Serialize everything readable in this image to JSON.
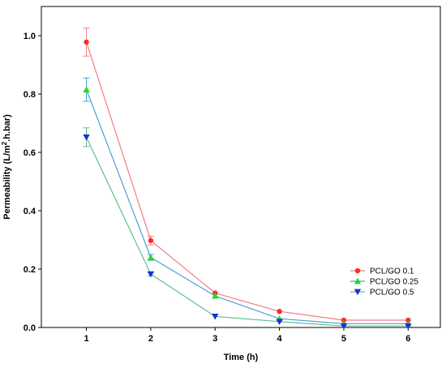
{
  "chart_data": {
    "type": "line",
    "xlabel": "Time (h)",
    "ylabel_main": "Permeability (L/m",
    "ylabel_sup": "2",
    "ylabel_tail": ".h.bar)",
    "x": [
      1,
      2,
      3,
      4,
      5,
      6
    ],
    "xlim": [
      0.3,
      6.5
    ],
    "ylim": [
      0.0,
      1.1
    ],
    "x_ticks": [
      "1",
      "2",
      "3",
      "4",
      "5",
      "6"
    ],
    "y_ticks": [
      "0.0",
      "0.2",
      "0.4",
      "0.6",
      "0.8",
      "1.0"
    ],
    "y_tick_values": [
      0.0,
      0.2,
      0.4,
      0.6,
      0.8,
      1.0
    ],
    "grid": false,
    "legend_position": "bottom-right",
    "series": [
      {
        "name": "PCL/GO 0.1",
        "color": "#ff2a2a",
        "line_color": "#f08080",
        "marker": "circle",
        "values": [
          0.978,
          0.298,
          0.118,
          0.055,
          0.025,
          0.025
        ],
        "errors": [
          0.048,
          0.015,
          0.004,
          0.003,
          0.002,
          0.002
        ]
      },
      {
        "name": "PCL/GO 0.25",
        "color": "#22dd22",
        "line_color": "#4b9fd6",
        "marker": "triangle-up",
        "values": [
          0.815,
          0.24,
          0.108,
          0.03,
          0.013,
          0.013
        ],
        "errors": [
          0.04,
          0.01,
          0.004,
          0.002,
          0.002,
          0.002
        ]
      },
      {
        "name": "PCL/GO 0.5",
        "color": "#1a2fd6",
        "line_color": "#5cc08a",
        "marker": "triangle-down",
        "values": [
          0.652,
          0.183,
          0.038,
          0.02,
          0.005,
          0.005
        ],
        "errors": [
          0.032,
          0.006,
          0.003,
          0.002,
          0.001,
          0.001
        ]
      }
    ]
  }
}
